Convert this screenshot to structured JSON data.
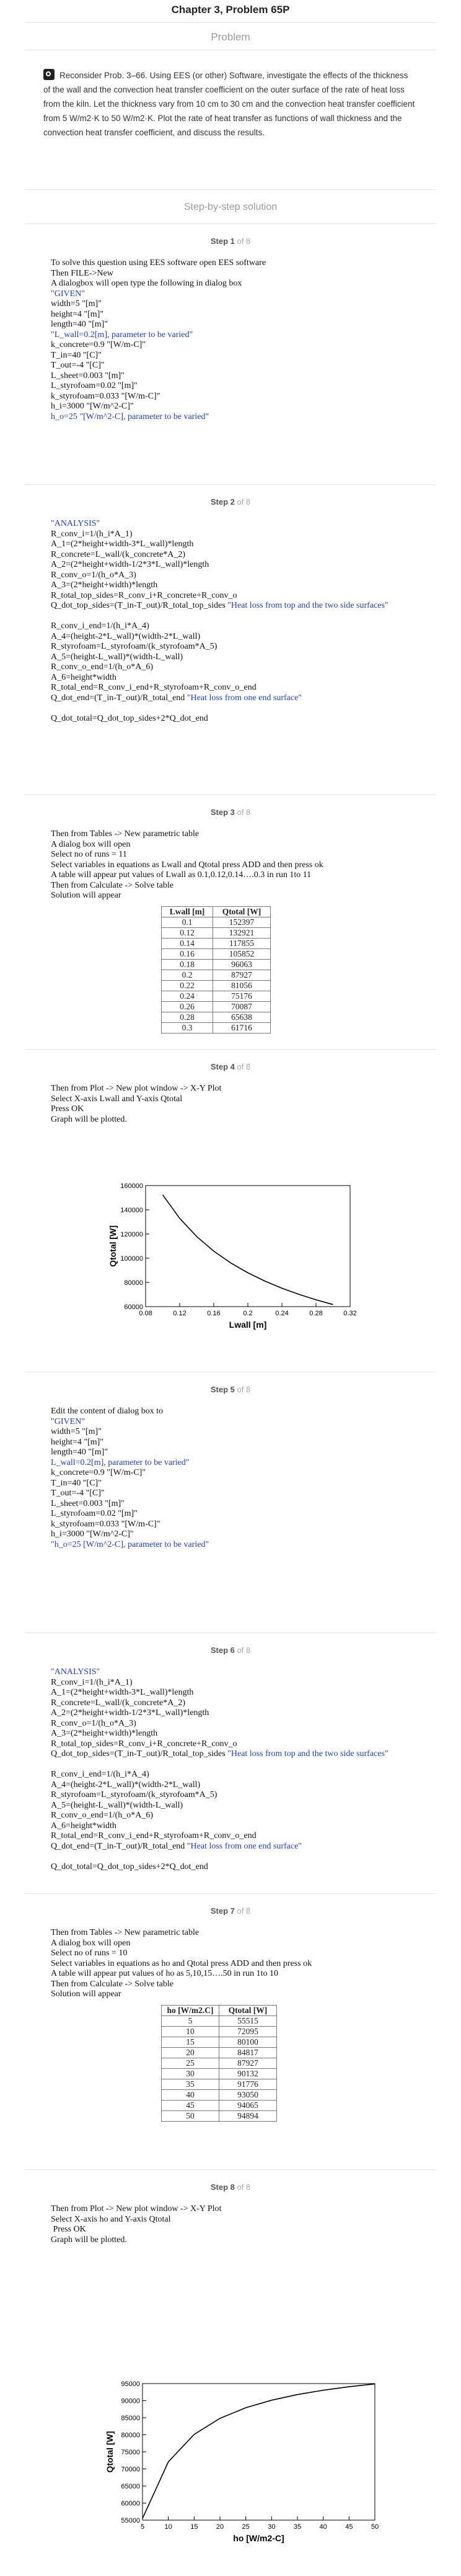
{
  "header": {
    "title": "Chapter 3, Problem 65P",
    "section_label": "Problem"
  },
  "problem_text": "Reconsider Prob. 3–66. Using EES (or other) Software, investigate the effects of the thickness of the wall and the convection heat transfer coefficient on the outer surface of the rate of heat loss from the kiln. Let the thickness vary from 10 cm to 30 cm and the convection heat transfer coefficient from 5 W/m2·K to 50 W/m2·K. Plot the rate of heat transfer as functions of wall thickness and the convection heat transfer coefficient, and discuss the results.",
  "solution_header": "Step-by-step solution",
  "steps": [
    {
      "label": "Step 1",
      "of": "of 8",
      "lines": [
        {
          "text": "To solve this question using EES software open EES software",
          "blue": false
        },
        {
          "text": "Then FILE->New",
          "blue": false
        },
        {
          "text": "A dialogbox will open type the following in dialog box",
          "blue": false
        },
        {
          "text": "\"GIVEN\"",
          "blue": true
        },
        {
          "text": "width=5 \"[m]\"",
          "blue": false,
          "suffix": ""
        },
        {
          "text": "height=4 \"[m]\"",
          "blue": false
        },
        {
          "text": "length=40 \"[m]\"",
          "blue": false
        },
        {
          "text": "\"L_wall=0.2[m], parameter to be varied\"",
          "blue": true
        },
        {
          "text": "k_concrete=0.9 \"[W/m-C]\"",
          "blue": false
        },
        {
          "text": "T_in=40 \"[C]\"",
          "blue": false
        },
        {
          "text": "T_out=-4 \"[C]\"",
          "blue": false
        },
        {
          "text": "L_sheet=0.003 \"[m]\"",
          "blue": false
        },
        {
          "text": "L_styrofoam=0.02 \"[m]\"",
          "blue": false
        },
        {
          "text": "k_styrofoam=0.033 \"[W/m-C]\"",
          "blue": false
        },
        {
          "text": "h_i=3000 \"[W/m^2-C]\"",
          "blue": false
        },
        {
          "text": "h_o=25 \"[W/m^2-C], parameter to be varied\"",
          "blue": true
        }
      ]
    },
    {
      "label": "Step 2",
      "of": "of 8",
      "lines": [
        {
          "text": "\"ANALYSIS\"",
          "blue": true
        },
        {
          "text": "R_conv_i=1/(h_i*A_1)",
          "blue": false
        },
        {
          "text": "A_1=(2*height+width-3*L_wall)*length",
          "blue": false
        },
        {
          "text": "R_concrete=L_wall/(k_concrete*A_2)",
          "blue": false
        },
        {
          "text": "A_2=(2*height+width-1/2*3*L_wall)*length",
          "blue": false
        },
        {
          "text": "R_conv_o=1/(h_o*A_3)",
          "blue": false
        },
        {
          "text": "A_3=(2*height+width)*length",
          "blue": false
        },
        {
          "text": "R_total_top_sides=R_conv_i+R_concrete+R_conv_o",
          "blue": false
        },
        {
          "text": "Q_dot_top_sides=(T_in-T_out)/R_total_top_sides ",
          "blue": false,
          "tail": "\"Heat loss from top and the two side surfaces\""
        },
        {
          "text": "",
          "blue": false
        },
        {
          "text": "R_conv_i_end=1/(h_i*A_4)",
          "blue": false
        },
        {
          "text": "A_4=(height-2*L_wall)*(width-2*L_wall)",
          "blue": false
        },
        {
          "text": "R_styrofoam=L_styrofoam/(k_styrofoam*A_5)",
          "blue": false
        },
        {
          "text": "A_5=(height-L_wall)*(width-L_wall)",
          "blue": false
        },
        {
          "text": "R_conv_o_end=1/(h_o*A_6)",
          "blue": false
        },
        {
          "text": "A_6=height*width",
          "blue": false
        },
        {
          "text": "R_total_end=R_conv_i_end+R_styrofoam+R_conv_o_end",
          "blue": false
        },
        {
          "text": "Q_dot_end=(T_in-T_out)/R_total_end ",
          "blue": false,
          "tail": "\"Heat loss from one end surface\""
        },
        {
          "text": "",
          "blue": false
        },
        {
          "text": "Q_dot_total=Q_dot_top_sides+2*Q_dot_end",
          "blue": false
        }
      ]
    },
    {
      "label": "Step 3",
      "of": "of 8",
      "lines": [
        {
          "text": "Then from Tables -> New parametric table",
          "blue": false
        },
        {
          "text": "A dialog box will open",
          "blue": false
        },
        {
          "text": "Select no of runs = 11",
          "blue": false
        },
        {
          "text": "Select variables in equations as Lwall and Qtotal press ADD and then press ok",
          "blue": false
        },
        {
          "text": "A table will appear put values of Lwall as 0.1,0.12,0.14….0.3 in run 1to 11",
          "blue": false
        },
        {
          "text": "Then from Calculate -> Solve table",
          "blue": false
        },
        {
          "text": "Solution will appear",
          "blue": false
        }
      ],
      "table": {
        "headers": [
          "Lwall [m]",
          "Qtotal [W]"
        ],
        "rows": [
          [
            "0.1",
            "152397"
          ],
          [
            "0.12",
            "132921"
          ],
          [
            "0.14",
            "117855"
          ],
          [
            "0.16",
            "105852"
          ],
          [
            "0.18",
            "96063"
          ],
          [
            "0.2",
            "87927"
          ],
          [
            "0.22",
            "81056"
          ],
          [
            "0.24",
            "75176"
          ],
          [
            "0.26",
            "70087"
          ],
          [
            "0.28",
            "65638"
          ],
          [
            "0.3",
            "61716"
          ]
        ]
      }
    },
    {
      "label": "Step 4",
      "of": "of 8",
      "lines": [
        {
          "text": "Then from Plot -> New plot window -> X-Y Plot",
          "blue": false
        },
        {
          "text": "Select X-axis Lwall and Y-axis Qtotal",
          "blue": false
        },
        {
          "text": "Press OK",
          "blue": false
        },
        {
          "text": "Graph will be plotted.",
          "blue": false
        }
      ]
    },
    {
      "label": "Step 5",
      "of": "of 8",
      "lines": [
        {
          "text": "Edit the content of dialog box to",
          "blue": false
        },
        {
          "text": "\"GIVEN\"",
          "blue": true
        },
        {
          "text": "width=5 \"[m]\"",
          "blue": false
        },
        {
          "text": "height=4 \"[m]\"",
          "blue": false
        },
        {
          "text": "length=40 \"[m]\"",
          "blue": false
        },
        {
          "text": "L_wall=0.2[m], parameter to be varied\"",
          "blue": true
        },
        {
          "text": "k_concrete=0.9 \"[W/m-C]\"",
          "blue": false
        },
        {
          "text": "T_in=40 \"[C]\"",
          "blue": false
        },
        {
          "text": "T_out=-4 \"[C]\"",
          "blue": false
        },
        {
          "text": "L_sheet=0.003 \"[m]\"",
          "blue": false
        },
        {
          "text": "L_styrofoam=0.02 \"[m]\"",
          "blue": false
        },
        {
          "text": "k_styrofoam=0.033 \"[W/m-C]\"",
          "blue": false
        },
        {
          "text": "h_i=3000 \"[W/m^2-C]\"",
          "blue": false
        },
        {
          "text": "\"h_o=25 [W/m^2-C], parameter to be varied\"",
          "blue": true
        }
      ]
    },
    {
      "label": "Step 6",
      "of": "of 8",
      "lines": [
        {
          "text": "\"ANALYSIS\"",
          "blue": true
        },
        {
          "text": "R_conv_i=1/(h_i*A_1)",
          "blue": false
        },
        {
          "text": "A_1=(2*height+width-3*L_wall)*length",
          "blue": false
        },
        {
          "text": "R_concrete=L_wall/(k_concrete*A_2)",
          "blue": false
        },
        {
          "text": "A_2=(2*height+width-1/2*3*L_wall)*length",
          "blue": false
        },
        {
          "text": "R_conv_o=1/(h_o*A_3)",
          "blue": false
        },
        {
          "text": "A_3=(2*height+width)*length",
          "blue": false
        },
        {
          "text": "R_total_top_sides=R_conv_i+R_concrete+R_conv_o",
          "blue": false
        },
        {
          "text": "Q_dot_top_sides=(T_in-T_out)/R_total_top_sides ",
          "blue": false,
          "tail": "\"Heat loss from top and the two side surfaces\""
        },
        {
          "text": "",
          "blue": false
        },
        {
          "text": "R_conv_i_end=1/(h_i*A_4)",
          "blue": false
        },
        {
          "text": "A_4=(height-2*L_wall)*(width-2*L_wall)",
          "blue": false
        },
        {
          "text": "R_styrofoam=L_styrofoam/(k_styrofoam*A_5)",
          "blue": false
        },
        {
          "text": "A_5=(height-L_wall)*(width-L_wall)",
          "blue": false
        },
        {
          "text": "R_conv_o_end=1/(h_o*A_6)",
          "blue": false
        },
        {
          "text": "A_6=height*width",
          "blue": false
        },
        {
          "text": "R_total_end=R_conv_i_end+R_styrofoam+R_conv_o_end",
          "blue": false
        },
        {
          "text": "Q_dot_end=(T_in-T_out)/R_total_end ",
          "blue": false,
          "tail": "\"Heat loss from one end surface\""
        },
        {
          "text": "",
          "blue": false
        },
        {
          "text": "Q_dot_total=Q_dot_top_sides+2*Q_dot_end",
          "blue": false
        }
      ]
    },
    {
      "label": "Step 7",
      "of": "of 8",
      "lines": [
        {
          "text": "Then from Tables -> New parametric table",
          "blue": false
        },
        {
          "text": "A dialog box will open",
          "blue": false
        },
        {
          "text": "Select no of runs = 10",
          "blue": false
        },
        {
          "text": "Select variables in equations as ho and Qtotal press ADD and then press ok",
          "blue": false
        },
        {
          "text": "A table will appear put values of ho as 5,10,15….50 in run 1to 10",
          "blue": false
        },
        {
          "text": "Then from Calculate -> Solve table",
          "blue": false
        },
        {
          "text": "Solution will appear",
          "blue": false
        }
      ],
      "table": {
        "headers": [
          "ho [W/m2.C]",
          "Qtotal [W]"
        ],
        "rows": [
          [
            "5",
            "55515"
          ],
          [
            "10",
            "72095"
          ],
          [
            "15",
            "80100"
          ],
          [
            "20",
            "84817"
          ],
          [
            "25",
            "87927"
          ],
          [
            "30",
            "90132"
          ],
          [
            "35",
            "91776"
          ],
          [
            "40",
            "93050"
          ],
          [
            "45",
            "94065"
          ],
          [
            "50",
            "94894"
          ]
        ]
      }
    },
    {
      "label": "Step 8",
      "of": "of 8",
      "lines": [
        {
          "text": "Then from Plot -> New plot window -> X-Y Plot",
          "blue": false
        },
        {
          "text": "Select X-axis ho and Y-axis Qtotal",
          "blue": false
        },
        {
          "text": " Press OK",
          "blue": false
        },
        {
          "text": "Graph will be plotted.",
          "blue": false
        }
      ]
    }
  ],
  "chart_data": [
    {
      "type": "line",
      "title": "",
      "xlabel": "Lwall [m]",
      "ylabel": "Qtotal [W]",
      "x": [
        0.1,
        0.12,
        0.14,
        0.16,
        0.18,
        0.2,
        0.22,
        0.24,
        0.26,
        0.28,
        0.3
      ],
      "y": [
        152397,
        132921,
        117855,
        105852,
        96063,
        87927,
        81056,
        75176,
        70087,
        65638,
        61716
      ],
      "xlim": [
        0.08,
        0.32
      ],
      "ylim": [
        60000,
        160000
      ],
      "xticks": [
        "0.08",
        "0.12",
        "0.16",
        "0.2",
        "0.24",
        "0.28",
        "0.32"
      ],
      "yticks": [
        "60000",
        "80000",
        "100000",
        "120000",
        "140000",
        "160000"
      ]
    },
    {
      "type": "line",
      "title": "",
      "xlabel": "ho [W/m2-C]",
      "ylabel": "Qtotal [W]",
      "x": [
        5,
        10,
        15,
        20,
        25,
        30,
        35,
        40,
        45,
        50
      ],
      "y": [
        55515,
        72095,
        80100,
        84817,
        87927,
        90132,
        91776,
        93050,
        94065,
        94894
      ],
      "xlim": [
        5,
        50
      ],
      "ylim": [
        55000,
        95000
      ],
      "xticks": [
        "5",
        "10",
        "15",
        "20",
        "25",
        "30",
        "35",
        "40",
        "45",
        "50"
      ],
      "yticks": [
        "55000",
        "60000",
        "65000",
        "70000",
        "75000",
        "80000",
        "85000",
        "90000",
        "95000"
      ]
    }
  ]
}
